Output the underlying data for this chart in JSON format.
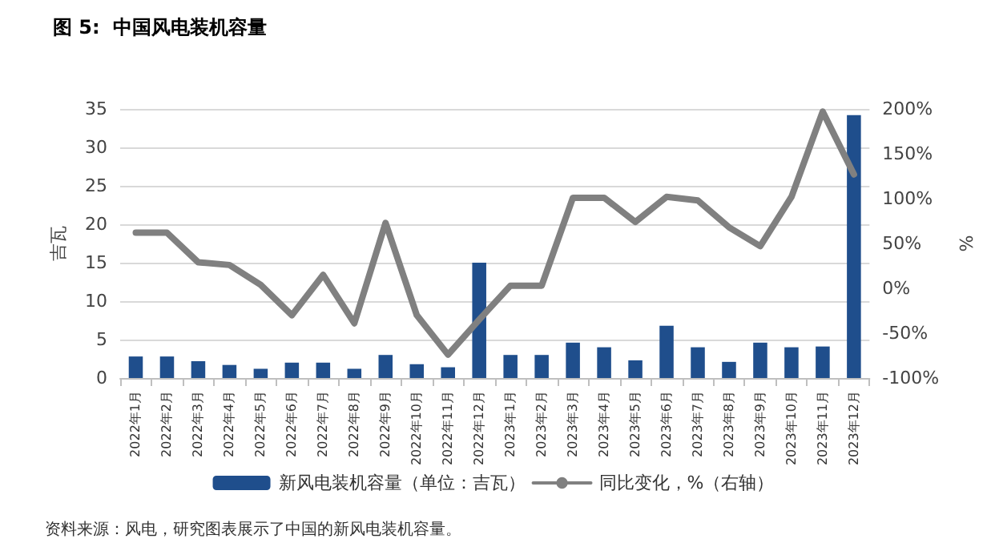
{
  "chart_data": {
    "type": "bar",
    "title": "图 5:  中国风电装机容量",
    "ylabel": "吉瓦",
    "y2label": "%",
    "categories": [
      "2022年1月",
      "2022年2月",
      "2022年3月",
      "2022年4月",
      "2022年5月",
      "2022年6月",
      "2022年7月",
      "2022年8月",
      "2022年9月",
      "2022年10月",
      "2022年11月",
      "2022年12月",
      "2023年1月",
      "2023年2月",
      "2023年3月",
      "2023年4月",
      "2023年5月",
      "2023年6月",
      "2023年7月",
      "2023年8月",
      "2023年9月",
      "2023年10月",
      "2023年11月",
      "2023年12月"
    ],
    "series": [
      {
        "name": "新风电装机容量（单位：吉瓦）",
        "color": "#1f4e8c",
        "values": [
          2.8,
          2.8,
          2.2,
          1.7,
          1.2,
          2.0,
          2.0,
          1.2,
          3.0,
          1.8,
          1.4,
          15.0,
          3.0,
          3.0,
          4.6,
          4.0,
          2.3,
          6.8,
          4.0,
          2.1,
          4.6,
          4.0,
          4.1,
          34.2
        ]
      },
      {
        "name": "同比变化，%（右轴）",
        "type": "line",
        "axis": "y2",
        "color": "#808080",
        "values": [
          62,
          62,
          29,
          26,
          4,
          -30,
          15,
          -39,
          73,
          -30,
          -74,
          -35,
          3,
          3,
          101,
          101,
          74,
          102,
          98,
          68,
          47,
          102,
          197,
          127
        ]
      }
    ],
    "ylim": [
      0,
      35
    ],
    "yticks": [
      0,
      5,
      10,
      15,
      20,
      25,
      30,
      35
    ],
    "y2lim": [
      -100,
      200
    ],
    "y2ticks": [
      {
        "value": -100,
        "label": "-100%"
      },
      {
        "value": -50,
        "label": "-50%"
      },
      {
        "value": 0,
        "label": "0%"
      },
      {
        "value": 50,
        "label": "50%"
      },
      {
        "value": 100,
        "label": "100%"
      },
      {
        "value": 150,
        "label": "150%"
      },
      {
        "value": 200,
        "label": "200%"
      }
    ],
    "grid": "y",
    "legend": "bottom",
    "marker": "none",
    "line_style": "solid",
    "annotations": [
      "资料来源：风电，研究图表展示了中国的新风电装机容量。"
    ]
  }
}
